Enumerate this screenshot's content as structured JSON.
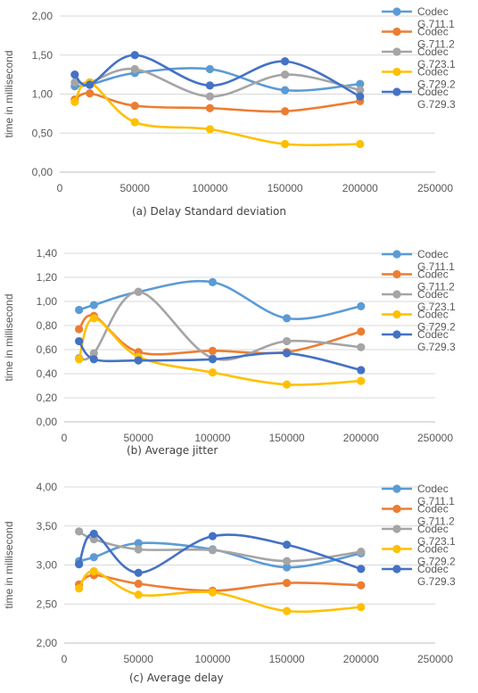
{
  "chart_data": [
    {
      "type": "line",
      "caption": "(a) Delay Standard deviation",
      "ylabel": "time in millisecond",
      "xlim": [
        0,
        250000
      ],
      "ylim": [
        0,
        2
      ],
      "xticks": [
        0,
        50000,
        100000,
        150000,
        200000,
        250000
      ],
      "xtick_labels": [
        "0",
        "50000",
        "100000",
        "150000",
        "200000",
        "250000"
      ],
      "yticks": [
        0,
        0.5,
        1,
        1.5,
        2
      ],
      "ytick_labels": [
        "0,00",
        "0,50",
        "1,00",
        "1,50",
        "2,00"
      ],
      "grid": true,
      "legend_position": "right",
      "x": [
        10000,
        20000,
        50000,
        100000,
        150000,
        200000
      ],
      "series": [
        {
          "name": "Codec G.711.1",
          "color": "#5B9BD5",
          "values": [
            1.1,
            1.12,
            1.27,
            1.32,
            1.05,
            1.13
          ]
        },
        {
          "name": "Codec G.711.2",
          "color": "#ED7D31",
          "values": [
            0.93,
            1.01,
            0.85,
            0.82,
            0.78,
            0.91
          ]
        },
        {
          "name": "Codec G.723.1",
          "color": "#A5A5A5",
          "values": [
            1.15,
            1.15,
            1.32,
            0.97,
            1.25,
            1.05
          ]
        },
        {
          "name": "Codec G.729.2",
          "color": "#FFC000",
          "values": [
            0.9,
            1.15,
            0.64,
            0.55,
            0.36,
            0.36
          ]
        },
        {
          "name": "Codec G.729.3",
          "color": "#4472C4",
          "values": [
            1.25,
            1.12,
            1.5,
            1.11,
            1.42,
            0.97
          ]
        }
      ]
    },
    {
      "type": "line",
      "caption": "(b) Average jitter",
      "ylabel": "time in millisecond",
      "xlim": [
        0,
        250000
      ],
      "ylim": [
        0,
        1.4
      ],
      "xticks": [
        0,
        50000,
        100000,
        150000,
        200000,
        250000
      ],
      "xtick_labels": [
        "0",
        "50000",
        "100000",
        "150000",
        "200000",
        "250000"
      ],
      "yticks": [
        0,
        0.2,
        0.4,
        0.6,
        0.8,
        1,
        1.2,
        1.4
      ],
      "ytick_labels": [
        "0,00",
        "0,20",
        "0,40",
        "0,60",
        "0,80",
        "1,00",
        "1,20",
        "1,40"
      ],
      "grid": true,
      "legend_position": "right",
      "x": [
        10000,
        20000,
        50000,
        100000,
        150000,
        200000
      ],
      "series": [
        {
          "name": "Codec G.711.1",
          "color": "#5B9BD5",
          "values": [
            0.93,
            0.97,
            1.08,
            1.16,
            0.86,
            0.96
          ]
        },
        {
          "name": "Codec G.711.2",
          "color": "#ED7D31",
          "values": [
            0.77,
            0.88,
            0.58,
            0.59,
            0.58,
            0.75
          ]
        },
        {
          "name": "Codec G.723.1",
          "color": "#A5A5A5",
          "values": [
            0.53,
            0.57,
            1.08,
            0.53,
            0.67,
            0.62
          ]
        },
        {
          "name": "Codec G.729.2",
          "color": "#FFC000",
          "values": [
            0.52,
            0.86,
            0.54,
            0.41,
            0.31,
            0.34
          ]
        },
        {
          "name": "Codec G.729.3",
          "color": "#4472C4",
          "values": [
            0.67,
            0.52,
            0.51,
            0.52,
            0.57,
            0.43
          ]
        }
      ]
    },
    {
      "type": "line",
      "caption": "(c) Average delay",
      "ylabel": "time in millisecond",
      "xlim": [
        0,
        250000
      ],
      "ylim": [
        2,
        4
      ],
      "xticks": [
        0,
        50000,
        100000,
        150000,
        200000,
        250000
      ],
      "xtick_labels": [
        "0",
        "50000",
        "100000",
        "150000",
        "200000",
        "250000"
      ],
      "yticks": [
        2,
        2.5,
        3,
        3.5,
        4
      ],
      "ytick_labels": [
        "2,00",
        "2,50",
        "3,00",
        "3,50",
        "4,00"
      ],
      "grid": true,
      "legend_position": "right",
      "x": [
        10000,
        20000,
        50000,
        100000,
        150000,
        200000
      ],
      "series": [
        {
          "name": "Codec G.711.1",
          "color": "#5B9BD5",
          "values": [
            3.05,
            3.1,
            3.28,
            3.2,
            2.97,
            3.15
          ]
        },
        {
          "name": "Codec G.711.2",
          "color": "#ED7D31",
          "values": [
            2.75,
            2.87,
            2.76,
            2.67,
            2.77,
            2.74
          ]
        },
        {
          "name": "Codec G.723.1",
          "color": "#A5A5A5",
          "values": [
            3.43,
            3.33,
            3.2,
            3.19,
            3.05,
            3.17
          ]
        },
        {
          "name": "Codec G.729.2",
          "color": "#FFC000",
          "values": [
            2.7,
            2.92,
            2.62,
            2.65,
            2.41,
            2.46
          ]
        },
        {
          "name": "Codec G.729.3",
          "color": "#4472C4",
          "values": [
            3.01,
            3.4,
            2.9,
            3.37,
            3.26,
            2.95
          ]
        }
      ]
    }
  ]
}
